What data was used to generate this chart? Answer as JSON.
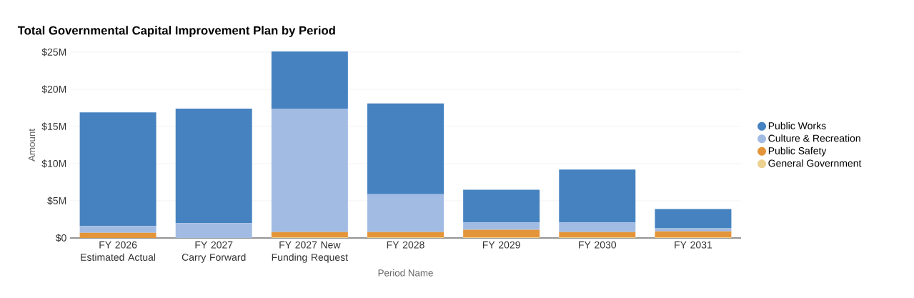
{
  "chart_data": {
    "type": "bar",
    "title": "Total Governmental Capital Improvement Plan by Period",
    "xlabel": "Period Name",
    "ylabel": "Amount",
    "categories": [
      "FY 2026 Estimated Actual",
      "FY 2027 Carry Forward",
      "FY 2027 New Funding Request",
      "FY 2028",
      "FY 2029",
      "FY 2030",
      "FY 2031"
    ],
    "stacked": true,
    "series": [
      {
        "name": "General Government",
        "color": "#ecd190",
        "values": [
          0,
          0,
          0.1,
          0.1,
          0.1,
          0.1,
          0.1
        ]
      },
      {
        "name": "Public Safety",
        "color": "#e4953a",
        "values": [
          0.7,
          0,
          0.7,
          0.7,
          1.0,
          0.7,
          0.8
        ]
      },
      {
        "name": "Culture & Recreation",
        "color": "#a2bbe3",
        "values": [
          0.9,
          2.0,
          16.6,
          5.1,
          1.0,
          1.3,
          0.4
        ]
      },
      {
        "name": "Public Works",
        "color": "#4682c0",
        "values": [
          15.3,
          15.4,
          7.7,
          12.2,
          4.4,
          7.1,
          2.6
        ]
      }
    ],
    "ylim": [
      0,
      25
    ],
    "yticks": [
      {
        "value": 0,
        "label": "$0"
      },
      {
        "value": 5,
        "label": "$5M"
      },
      {
        "value": 10,
        "label": "$10M"
      },
      {
        "value": 15,
        "label": "$15M"
      },
      {
        "value": 20,
        "label": "$20M"
      },
      {
        "value": 25,
        "label": "$25M"
      }
    ],
    "grid": "y",
    "legend": "right"
  }
}
